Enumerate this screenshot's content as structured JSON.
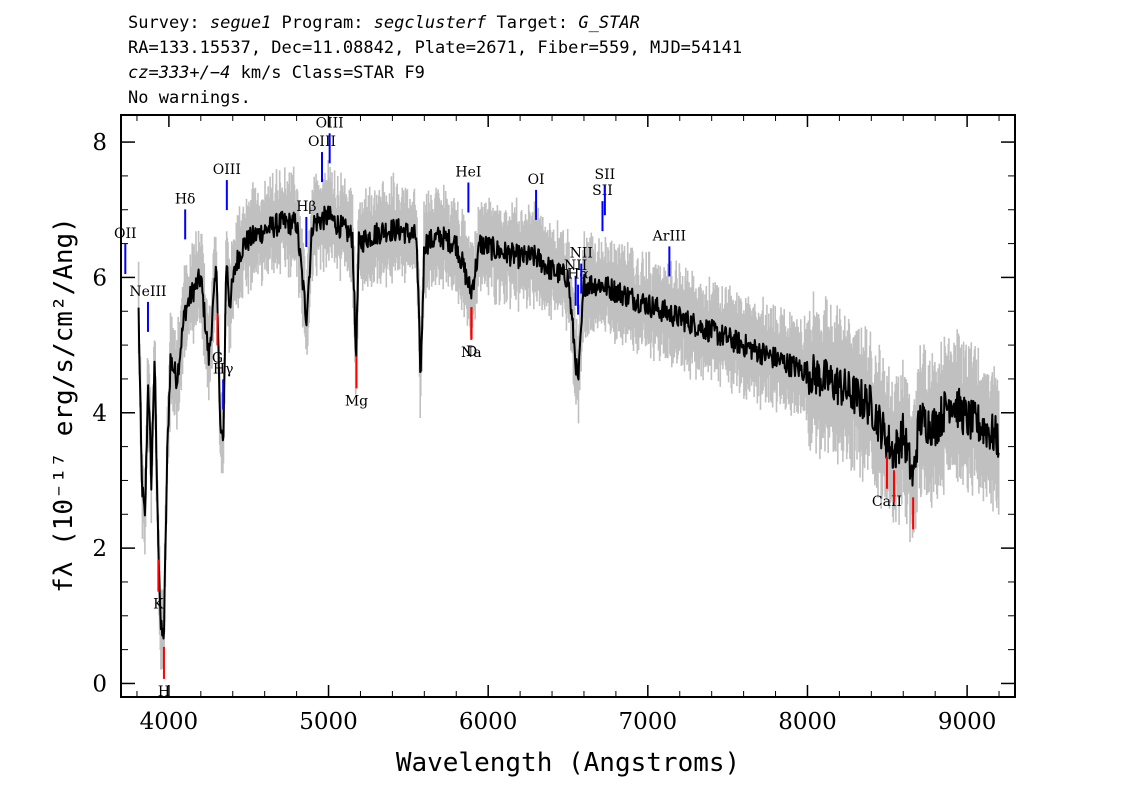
{
  "header": {
    "line1": {
      "p1": "Survey: ",
      "v1": "segue1",
      "p2": " Program: ",
      "v2": "segclusterf",
      "p3": " Target: ",
      "v3": "G_STAR"
    },
    "line2": "RA=133.15537, Dec=11.08842, Plate=2671, Fiber=559, MJD=54141",
    "line3": {
      "v1": "cz=333+/−4",
      "p2": " km/s Class=STAR F9"
    },
    "line4": "No warnings."
  },
  "chart_data": {
    "type": "line",
    "xlabel": "Wavelength (Angstroms)",
    "ylabel": "fλ (10⁻¹⁷ erg/s/cm²/Ang)",
    "xlim": [
      3700,
      9300
    ],
    "ylim": [
      -0.2,
      8.4
    ],
    "x_ticks": [
      4000,
      5000,
      6000,
      7000,
      8000,
      9000
    ],
    "x_tick_labels": [
      "4000",
      "5000",
      "6000",
      "7000",
      "8000",
      "9000"
    ],
    "y_ticks": [
      0,
      2,
      4,
      6,
      8
    ],
    "y_tick_labels": [
      "0",
      "2",
      "4",
      "6",
      "8"
    ],
    "grid": false,
    "colors": {
      "flux": "#000000",
      "noise_band": "#c0c0c0",
      "emission": "#0000ff",
      "absorption": "#ff0000"
    },
    "series": [
      {
        "role": "flux",
        "x": [
          3810,
          3830,
          3850,
          3870,
          3890,
          3910,
          3930,
          3950,
          3960,
          3970,
          3980,
          3990,
          4010,
          4050,
          4100,
          4150,
          4200,
          4250,
          4300,
          4320,
          4340,
          4360,
          4380,
          4420,
          4470,
          4530,
          4600,
          4700,
          4800,
          4861,
          4900,
          5000,
          5100,
          5150,
          5172,
          5190,
          5250,
          5350,
          5450,
          5550,
          5577,
          5600,
          5700,
          5800,
          5890,
          5895,
          5950,
          6050,
          6200,
          6300,
          6400,
          6500,
          6563,
          6600,
          6700,
          6800,
          7000,
          7200,
          7400,
          7600,
          7800,
          8000,
          8200,
          8400,
          8498,
          8542,
          8600,
          8662,
          8700,
          8800,
          8900,
          9000,
          9100,
          9200
        ],
        "y": [
          5.5,
          3.0,
          2.4,
          4.5,
          3.0,
          4.8,
          2.4,
          0.8,
          0.7,
          0.8,
          2.2,
          3.4,
          4.8,
          4.5,
          5.5,
          5.8,
          6.0,
          4.8,
          6.2,
          3.8,
          3.5,
          6.3,
          5.6,
          6.2,
          6.5,
          6.6,
          6.7,
          6.8,
          6.8,
          5.4,
          6.8,
          6.9,
          6.7,
          6.6,
          4.8,
          6.5,
          6.6,
          6.7,
          6.7,
          6.6,
          4.5,
          6.5,
          6.6,
          6.5,
          5.8,
          5.8,
          6.5,
          6.4,
          6.3,
          6.3,
          6.1,
          6.0,
          4.4,
          5.9,
          5.9,
          5.8,
          5.6,
          5.4,
          5.2,
          5.0,
          4.8,
          4.6,
          4.4,
          4.1,
          3.6,
          3.4,
          3.7,
          3.0,
          3.9,
          3.8,
          4.2,
          3.9,
          3.8,
          3.6
        ]
      }
    ],
    "emission_lines": [
      {
        "label": "OII",
        "wave": 3727
      },
      {
        "label": "NeIII",
        "wave": 3869
      },
      {
        "label": "Hδ",
        "wave": 4102
      },
      {
        "label": "Hγ",
        "wave": 4340
      },
      {
        "label": "OIII",
        "wave": 4363
      },
      {
        "label": "Hβ",
        "wave": 4861
      },
      {
        "label": "OIII",
        "wave": 4959
      },
      {
        "label": "OIII",
        "wave": 5007
      },
      {
        "label": "HeI",
        "wave": 5876
      },
      {
        "label": "OI",
        "wave": 6300
      },
      {
        "label": "NII",
        "wave": 6548
      },
      {
        "label": "Hα",
        "wave": 6563
      },
      {
        "label": "NII",
        "wave": 6583
      },
      {
        "label": "SII",
        "wave": 6716
      },
      {
        "label": "SII",
        "wave": 6731
      },
      {
        "label": "ArIII",
        "wave": 7135
      }
    ],
    "absorption_lines": [
      {
        "label": "K",
        "wave": 3934
      },
      {
        "label": "H",
        "wave": 3969
      },
      {
        "label": "G",
        "wave": 4304
      },
      {
        "label": "Mg",
        "wave": 5175
      },
      {
        "label": "Na",
        "wave": 5894
      },
      {
        "label": "D",
        "wave": 5896
      },
      {
        "label": "CaII",
        "wave": 8498
      },
      {
        "label": "CaII",
        "wave": 8542
      },
      {
        "label": "CaII",
        "wave": 8662
      }
    ]
  }
}
